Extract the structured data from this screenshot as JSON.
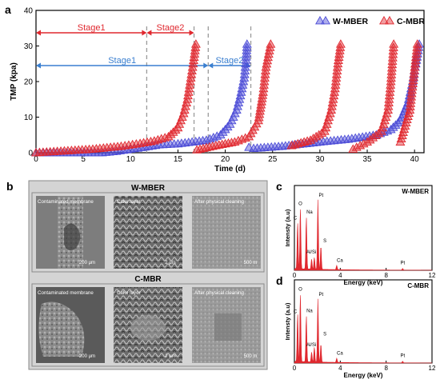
{
  "panels": {
    "a": "a",
    "b": "b",
    "c": "c",
    "d": "d"
  },
  "colors": {
    "wmber": "#4b4bd6",
    "cmbr": "#e0282f",
    "stage_blue": "#3a7fd0",
    "stage_red": "#e0282f",
    "dash": "#9a9a9a"
  },
  "chart_data": [
    {
      "panel": "a",
      "type": "scatter",
      "xlabel": "Time (d)",
      "ylabel": "TMP (kpa)",
      "xlim": [
        0,
        41
      ],
      "ylim": [
        0,
        40
      ],
      "xticks": [
        0,
        5,
        10,
        15,
        20,
        25,
        30,
        35,
        40
      ],
      "yticks": [
        0,
        10,
        20,
        30,
        40
      ],
      "legend_position": "top-right",
      "marker": "triangle",
      "series": [
        {
          "name": "W-MBER",
          "x": [
            0,
            4,
            7,
            8.5,
            10,
            11.5,
            13,
            15,
            16.5,
            18,
            19.5,
            20.5,
            21.2,
            21.6,
            22,
            22.2,
            22.3,
            22.5,
            23,
            26,
            30,
            33,
            36,
            37.5,
            38.5,
            39.3,
            39.8,
            40.2,
            40.5
          ],
          "values": [
            0,
            0,
            0,
            0.4,
            1,
            1.6,
            2.2,
            2.5,
            3.0,
            3.5,
            5,
            8,
            12,
            16,
            21,
            26,
            30.5,
            1.5,
            1.2,
            1.8,
            3,
            3.8,
            5,
            6.5,
            9,
            14,
            20,
            26,
            30.5
          ]
        },
        {
          "name": "C-MBR",
          "x": [
            0,
            3,
            6,
            9,
            11,
            12.5,
            14,
            15,
            15.6,
            16,
            16.3,
            16.6,
            16.9,
            17,
            19,
            21,
            22.5,
            23.5,
            24,
            24.3,
            24.8,
            27,
            29,
            30.5,
            31.2,
            31.6,
            31.9,
            32.2,
            33.5,
            35,
            36.5,
            37.2,
            37.5,
            37.8,
            38.5,
            39.5,
            40.3
          ],
          "values": [
            0,
            0.5,
            1,
            1.8,
            2.6,
            3.3,
            4.5,
            7,
            11,
            15,
            20,
            25,
            30.5,
            0.8,
            2,
            3,
            4.5,
            9,
            17,
            24,
            30.5,
            2,
            3.5,
            6,
            12,
            18,
            25,
            30.5,
            1,
            3,
            6,
            12,
            20,
            30.5,
            3,
            12,
            30.5
          ]
        }
      ],
      "annotations": {
        "stage1_top": "Stage1",
        "stage2_top": "Stage2",
        "stage1_bottom": "Stage1",
        "stage2_bottom": "Stage2"
      }
    },
    {
      "panel": "c",
      "type": "bar",
      "title": "W-MBER",
      "xlabel": "Energy (keV)",
      "ylabel": "Intensty (a.u)",
      "xlim": [
        0,
        12
      ],
      "xticks": [
        0,
        4,
        8,
        12
      ],
      "peak_labels": [
        "C",
        "O",
        "Na",
        "Pt",
        "S",
        "Al/Si",
        "Ca",
        "Pt"
      ]
    },
    {
      "panel": "d",
      "type": "bar",
      "title": "C-MBR",
      "xlabel": "Energy (keV)",
      "ylabel": "Intensty (a.u)",
      "xlim": [
        0,
        12
      ],
      "xticks": [
        0,
        4,
        8,
        12
      ],
      "peak_labels": [
        "C",
        "O",
        "Na",
        "Pt",
        "S",
        "Al/Si",
        "Ca",
        "Pt"
      ]
    }
  ],
  "sem": {
    "top_title": "W-MBER",
    "bottom_title": "C-MBR",
    "top": [
      {
        "caption": "Contaminated membrane",
        "scale": "200 μm"
      },
      {
        "caption": "Cake  layer",
        "scale": "2 μm"
      },
      {
        "caption": "After physical cleaning",
        "scale": "500 m"
      }
    ],
    "bottom": [
      {
        "caption": "Contaminated membrane",
        "scale": "200 μm"
      },
      {
        "caption": "Cake layer",
        "scale": "2 μm"
      },
      {
        "caption": "After physical cleaning",
        "scale": "500 m"
      }
    ]
  }
}
